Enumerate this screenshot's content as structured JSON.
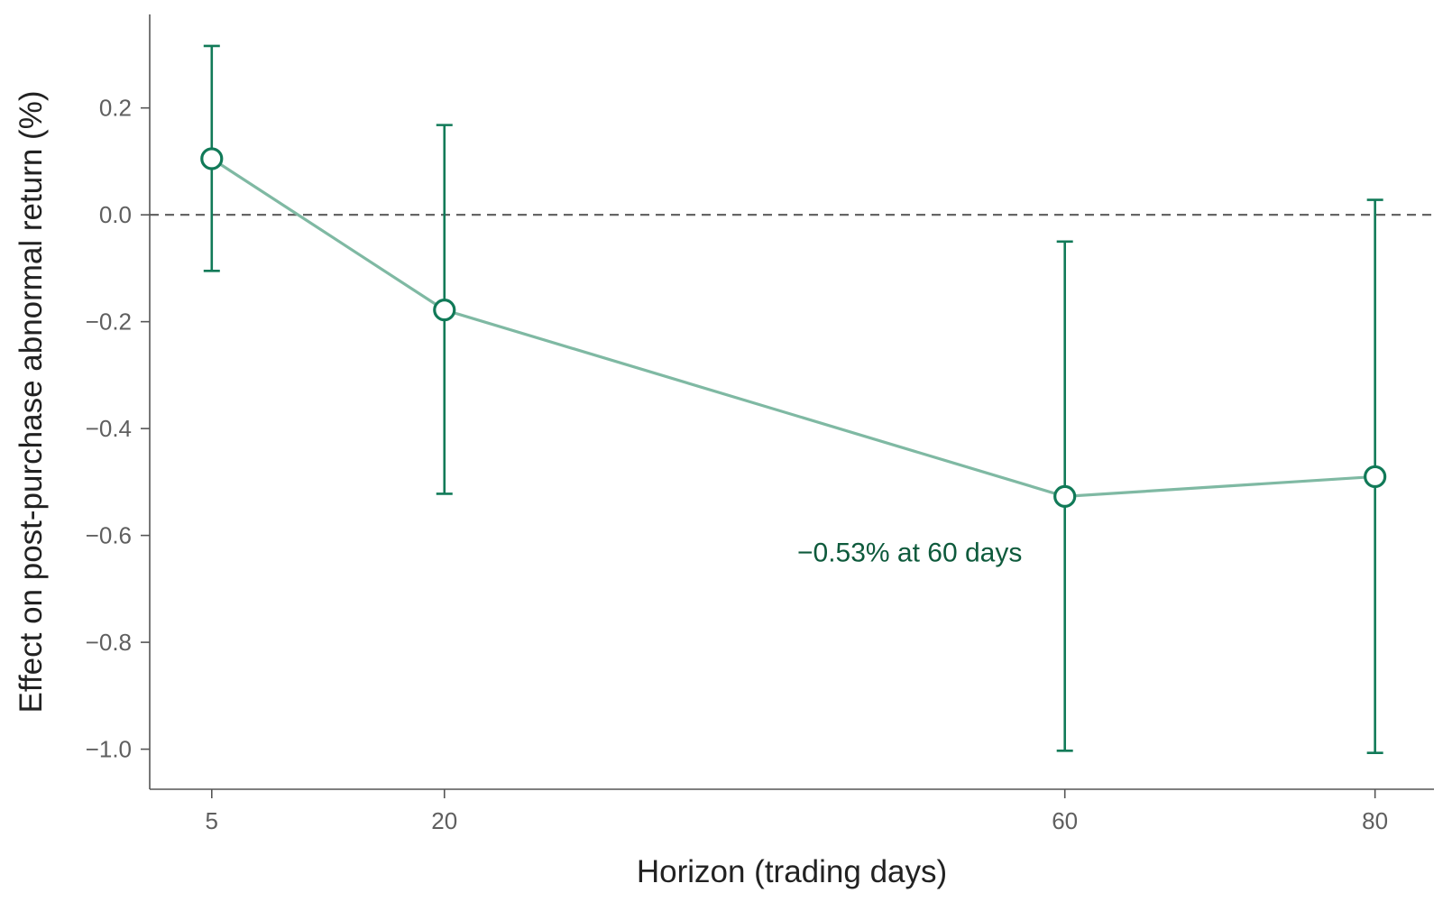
{
  "chart_data": {
    "type": "line",
    "title": "",
    "xlabel": "Horizon (trading days)",
    "ylabel": "Effect on post-purchase abnormal return (%)",
    "x": [
      5,
      20,
      60,
      80
    ],
    "x_ticks": [
      "5",
      "20",
      "60",
      "80"
    ],
    "y_ticks": [
      "0.2",
      "0.0",
      "−0.2",
      "−0.4",
      "−0.6",
      "−0.8",
      "−1.0"
    ],
    "y_tick_values": [
      0.2,
      0.0,
      -0.2,
      -0.4,
      -0.6,
      -0.8,
      -1.0
    ],
    "xlim": [
      1.0,
      83.8
    ],
    "ylim": [
      -1.075,
      0.375
    ],
    "series": [
      {
        "values": [
          0.105,
          -0.178,
          -0.527,
          -0.49
        ],
        "ci_lower": [
          -0.105,
          -0.522,
          -1.003,
          -1.007
        ],
        "ci_upper": [
          0.316,
          0.168,
          -0.05,
          0.028
        ]
      }
    ],
    "reference_line": {
      "y": 0.0,
      "style": "dashed"
    },
    "annotation": {
      "text": "−0.53% at 60 days",
      "x": 60,
      "y": -0.63
    },
    "grid": false,
    "legend": "none",
    "colors": {
      "point_edge": "#117a58",
      "point_fill": "#ffffff",
      "line": "#7fb9a3",
      "errorbar": "#117a58",
      "reference": "#666666",
      "axis": "#555555",
      "annotation": "#0e5a3c"
    }
  }
}
